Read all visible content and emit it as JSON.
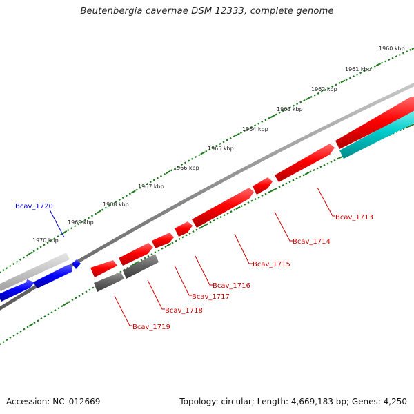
{
  "title": "Beutenbergia cavernae DSM 12333, complete genome",
  "kbp_ticks": [
    "1960 kbp",
    "1961 kbp",
    "1962 kbp",
    "1963 kbp",
    "1964 kbp",
    "1965 kbp",
    "1966 kbp",
    "1967 kbp",
    "1968 kbp",
    "1969 kbp",
    "1970 kbp"
  ],
  "genes": {
    "bcav_1713": "Bcav_1713",
    "bcav_1714": "Bcav_1714",
    "bcav_1715": "Bcav_1715",
    "bcav_1716": "Bcav_1716",
    "bcav_1717": "Bcav_1717",
    "bcav_1718": "Bcav_1718",
    "bcav_1719": "Bcav_1719",
    "bcav_1720": "Bcav_1720"
  },
  "colors": {
    "forward_cds": "#ff0000",
    "reverse_cds_highlight": "#0000ff",
    "rna": "#00cccc",
    "pseudo": "#666666",
    "tick": "#1a7a1a",
    "backbone": "#888888"
  },
  "footer": {
    "accession": "Accession: NC_012669",
    "summary": "Topology: circular; Length: 4,669,183 bp; Genes: 4,250"
  }
}
